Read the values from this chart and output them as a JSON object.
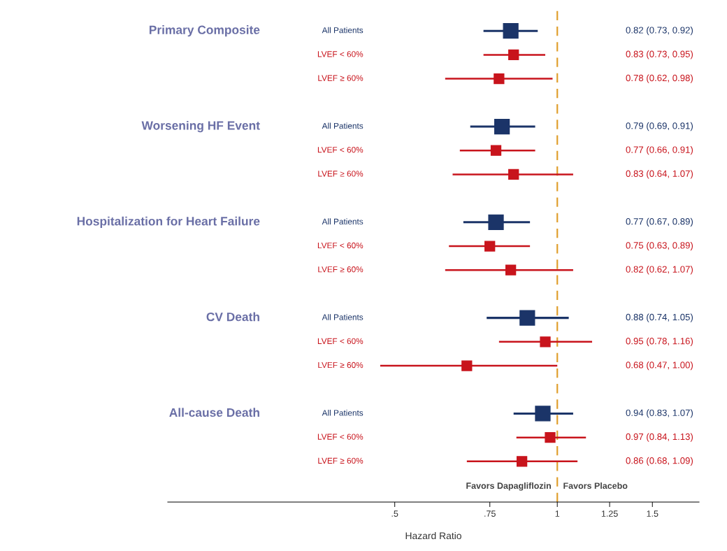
{
  "chart_data": {
    "type": "scatter",
    "orientation": "horizontal",
    "log": "x",
    "marker": "square",
    "grid": false,
    "legend": false,
    "categories": [
      "All Patients",
      "LVEF < 60%",
      "LVEF ≥ 60%",
      null,
      "All Patients",
      "LVEF < 60%",
      "LVEF ≥ 60%",
      null,
      "All Patients",
      "LVEF < 60%",
      "LVEF ≥ 60%",
      null,
      "All Patients",
      "LVEF < 60%",
      "LVEF ≥ 60%",
      null,
      "All Patients",
      "LVEF < 60%",
      "LVEF ≥ 60%"
    ],
    "series": [
      {
        "color": "#1b3468",
        "values": [
          0.82,
          null,
          null,
          null,
          0.79,
          null,
          null,
          null,
          0.77,
          null,
          null,
          null,
          0.88,
          null,
          null,
          null,
          0.94,
          null,
          null
        ],
        "errors": [
          [
            0.73,
            0.92
          ],
          null,
          null,
          null,
          [
            0.69,
            0.91
          ],
          null,
          null,
          null,
          [
            0.67,
            0.89
          ],
          null,
          null,
          null,
          [
            0.74,
            1.05
          ],
          null,
          null,
          null,
          [
            0.83,
            1.07
          ],
          null,
          null
        ]
      },
      {
        "color": "#c8141c",
        "values": [
          null,
          0.83,
          0.78,
          null,
          null,
          0.77,
          0.83,
          null,
          null,
          0.75,
          0.82,
          null,
          null,
          0.95,
          0.68,
          null,
          null,
          0.97,
          0.86
        ],
        "errors": [
          null,
          [
            0.73,
            0.95
          ],
          [
            0.62,
            0.98
          ],
          null,
          null,
          [
            0.66,
            0.91
          ],
          [
            0.64,
            1.07
          ],
          null,
          null,
          [
            0.63,
            0.89
          ],
          [
            0.62,
            1.07
          ],
          null,
          null,
          [
            0.78,
            1.16
          ],
          [
            0.47,
            1.0
          ],
          null,
          null,
          [
            0.84,
            1.13
          ],
          [
            0.68,
            1.09
          ]
        ]
      }
    ],
    "xlim": [
      0.19,
      1.83
    ],
    "xticks": [
      {
        "value": 0.5,
        "label": ".5"
      },
      {
        "value": 0.75,
        "label": ".75"
      },
      1,
      {
        "value": 1.25,
        "label": "1.25"
      },
      {
        "value": 1.5,
        "label": "1.5"
      }
    ],
    "xlabel": "Hazard Ratio",
    "ref_lines": [
      {
        "axis": "x",
        "value": 1,
        "color": "#e0a030",
        "line_style": "dashed"
      }
    ],
    "annotations": [
      "Primary Composite",
      "Worsening HF Event",
      "Hospitalization for Heart Failure",
      "CV Death",
      "All-cause Death",
      "Favors Dapagliflozin",
      "Favors Placebo",
      "0.82 (0.73, 0.92)",
      "0.83 (0.73, 0.95)",
      "0.78 (0.62, 0.98)",
      "0.79 (0.69, 0.91)",
      "0.77 (0.66, 0.91)",
      "0.83 (0.64, 1.07)",
      "0.77 (0.67, 0.89)",
      "0.75 (0.63, 0.89)",
      "0.82 (0.62, 1.07)",
      "0.88 (0.74, 1.05)",
      "0.95 (0.78, 1.16)",
      "0.68 (0.47, 1.00)",
      "0.94 (0.83, 1.07)",
      "0.97 (0.84, 1.13)",
      "0.86 (0.68, 1.09)"
    ]
  }
}
